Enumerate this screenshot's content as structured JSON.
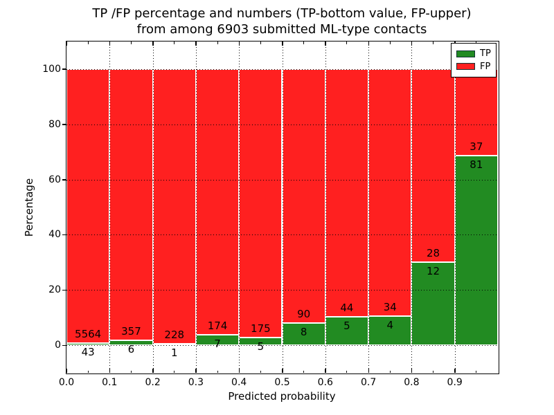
{
  "chart_data": {
    "type": "bar",
    "stacked": true,
    "title": "TP /FP percentage and numbers (TP-bottom value, FP-upper)",
    "subtitle": "from among 6903 submitted ML-type contacts",
    "xlabel": "Predicted probability",
    "ylabel": "Percentage",
    "xlim": [
      0.0,
      1.0
    ],
    "ylim": [
      -10,
      110
    ],
    "x_tick_values": [
      0.0,
      0.1,
      0.2,
      0.3,
      0.4,
      0.5,
      0.6,
      0.7,
      0.8,
      0.9
    ],
    "x_tick_labels": [
      "0.0",
      "0.1",
      "0.2",
      "0.3",
      "0.4",
      "0.5",
      "0.6",
      "0.7",
      "0.8",
      "0.9"
    ],
    "x_minor_tick_values": [
      0.05,
      0.15,
      0.25,
      0.35,
      0.45,
      0.55,
      0.65,
      0.75,
      0.85,
      0.95
    ],
    "y_tick_values": [
      0,
      20,
      40,
      60,
      80,
      100
    ],
    "y_tick_labels": [
      "0",
      "20",
      "40",
      "60",
      "80",
      "100"
    ],
    "grid": true,
    "grid_style": "dotted",
    "legend_position": "upper right",
    "series": [
      {
        "name": "TP",
        "color": "#228B22"
      },
      {
        "name": "FP",
        "color": "#FF2020"
      }
    ],
    "total_contacts": 6903,
    "bin_width": 0.1,
    "bins": [
      {
        "x0": 0.0,
        "x1": 0.1,
        "tp_count": 43,
        "fp_count": 5564,
        "tp_pct": 0.77,
        "fp_pct": 99.23
      },
      {
        "x0": 0.1,
        "x1": 0.2,
        "tp_count": 6,
        "fp_count": 357,
        "tp_pct": 1.65,
        "fp_pct": 98.35
      },
      {
        "x0": 0.2,
        "x1": 0.3,
        "tp_count": 1,
        "fp_count": 228,
        "tp_pct": 0.44,
        "fp_pct": 99.56
      },
      {
        "x0": 0.3,
        "x1": 0.4,
        "tp_count": 7,
        "fp_count": 174,
        "tp_pct": 3.87,
        "fp_pct": 96.13
      },
      {
        "x0": 0.4,
        "x1": 0.5,
        "tp_count": 5,
        "fp_count": 175,
        "tp_pct": 2.78,
        "fp_pct": 97.22
      },
      {
        "x0": 0.5,
        "x1": 0.6,
        "tp_count": 8,
        "fp_count": 90,
        "tp_pct": 8.16,
        "fp_pct": 91.84
      },
      {
        "x0": 0.6,
        "x1": 0.7,
        "tp_count": 5,
        "fp_count": 44,
        "tp_pct": 10.2,
        "fp_pct": 89.8
      },
      {
        "x0": 0.7,
        "x1": 0.8,
        "tp_count": 4,
        "fp_count": 34,
        "tp_pct": 10.53,
        "fp_pct": 89.47
      },
      {
        "x0": 0.8,
        "x1": 0.9,
        "tp_count": 12,
        "fp_count": 28,
        "tp_pct": 30.0,
        "fp_pct": 70.0
      },
      {
        "x0": 0.9,
        "x1": 1.0,
        "tp_count": 81,
        "fp_count": 37,
        "tp_pct": 68.64,
        "fp_pct": 31.36
      }
    ]
  }
}
